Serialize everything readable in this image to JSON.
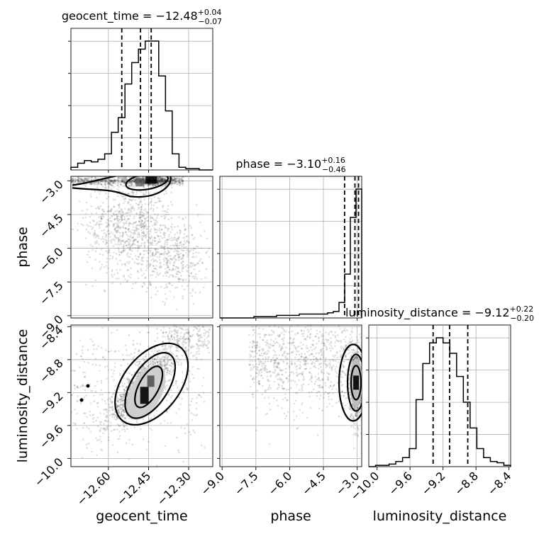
{
  "chart_data": {
    "type": "corner",
    "parameters": [
      {
        "name": "geocent_time",
        "label": "geocent_time",
        "title_main": "geocent_time = −12.48",
        "err_plus": "+0.04",
        "err_minus": "−0.07",
        "range": [
          -12.74,
          -12.21
        ],
        "ticks": [
          -12.6,
          -12.45,
          -12.3
        ],
        "tick_labels": [
          "−12.60",
          "−12.45",
          "−12.30"
        ],
        "quantiles": [
          -12.55,
          -12.48,
          -12.44
        ],
        "hist_counts": [
          2,
          5,
          7,
          6,
          8,
          12,
          28,
          39,
          64,
          80,
          90,
          96,
          96,
          70,
          44,
          12,
          2,
          1,
          1,
          0,
          0
        ]
      },
      {
        "name": "phase",
        "label": "phase",
        "title_main": "phase = −3.10",
        "err_plus": "+0.16",
        "err_minus": "−0.46",
        "range": [
          -9.1,
          -2.8
        ],
        "ticks": [
          -9.0,
          -7.5,
          -6.0,
          -4.5,
          -3.0
        ],
        "tick_labels": [
          "−9.0",
          "−7.5",
          "−6.0",
          "−4.5",
          "−3.0"
        ],
        "quantiles": [
          -3.56,
          -3.1,
          -2.94
        ],
        "hist_counts": [
          0,
          0,
          0,
          0,
          0,
          0,
          1,
          1,
          1,
          1,
          2,
          2,
          2,
          2,
          3,
          3,
          3,
          3,
          3,
          4,
          5,
          12,
          34,
          78,
          100
        ]
      },
      {
        "name": "luminosity_distance",
        "label": "luminosity_distance",
        "title_main": "luminosity_distance = −9.12",
        "err_plus": "+0.22",
        "err_minus": "−0.20",
        "range": [
          -10.1,
          -8.38
        ],
        "ticks": [
          -10.0,
          -9.6,
          -9.2,
          -8.8,
          -8.4
        ],
        "tick_labels": [
          "−10.0",
          "−9.6",
          "−9.2",
          "−8.8",
          "−8.4"
        ],
        "quantiles": [
          -9.32,
          -9.12,
          -8.9
        ],
        "hist_counts": [
          0,
          1,
          1,
          2,
          4,
          7,
          14,
          52,
          80,
          96,
          100,
          96,
          88,
          70,
          50,
          30,
          14,
          7,
          4,
          3,
          1
        ]
      }
    ],
    "scatter_density": [
      {
        "x": "geocent_time",
        "y": "phase",
        "peak": [
          -12.44,
          -3.0
        ],
        "contour_levels": [
          "outer",
          "inner"
        ]
      },
      {
        "x": "geocent_time",
        "y": "luminosity_distance",
        "peak": [
          -12.46,
          -9.2
        ],
        "contour_levels": [
          "outer",
          "middle",
          "inner"
        ]
      },
      {
        "x": "phase",
        "y": "luminosity_distance",
        "peak": [
          -3.05,
          -9.08
        ],
        "contour_levels": [
          "outer",
          "middle",
          "inner"
        ]
      }
    ],
    "grid": true,
    "x_tick_rotation": "45deg"
  }
}
